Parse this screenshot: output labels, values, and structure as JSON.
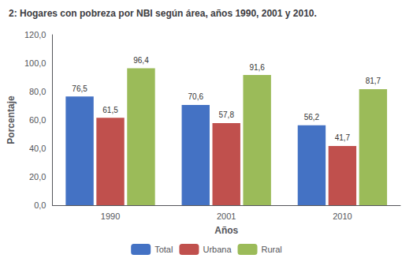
{
  "chart_data": {
    "type": "bar",
    "title": "2: Hogares con pobreza por NBI según área, años 1990, 2001 y 2010.",
    "xlabel": "Años",
    "ylabel": "Porcentaje",
    "categories": [
      "1990",
      "2001",
      "2010"
    ],
    "series": [
      {
        "name": "Total",
        "color": "#4472C4",
        "values": [
          76.5,
          70.6,
          56.2
        ],
        "value_labels": [
          "76,5",
          "70,6",
          "56,2"
        ]
      },
      {
        "name": "Urbana",
        "color": "#C0504D",
        "values": [
          61.5,
          57.8,
          41.7
        ],
        "value_labels": [
          "61,5",
          "57,8",
          "41,7"
        ]
      },
      {
        "name": "Rural",
        "color": "#9BBB59",
        "values": [
          96.4,
          91.6,
          81.7
        ],
        "value_labels": [
          "96,4",
          "91,6",
          "81,7"
        ]
      }
    ],
    "ylim": [
      0,
      120
    ],
    "yticks": [
      {
        "value": 0,
        "label": "0,0"
      },
      {
        "value": 20,
        "label": "20,0"
      },
      {
        "value": 40,
        "label": "40,0"
      },
      {
        "value": 60,
        "label": "60,0"
      },
      {
        "value": 80,
        "label": "80,0"
      },
      {
        "value": 100,
        "label": "100,0"
      },
      {
        "value": 120,
        "label": "120,0"
      }
    ],
    "grid": false,
    "legend": "bottom",
    "data_labels": true
  }
}
